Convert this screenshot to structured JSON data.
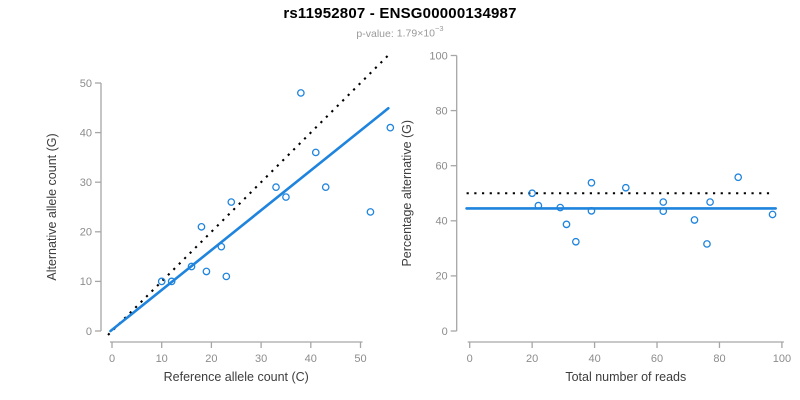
{
  "header": {
    "title": "rs11952807 - ENSG00000134987",
    "pvalue_label": "p-value:",
    "pvalue_mantissa": "1.79",
    "pvalue_times": "×10",
    "pvalue_exponent": "−3"
  },
  "colors": {
    "accent_blue": "#1f84dd",
    "dotted_line": "#000000",
    "axis_line": "#a6a6a6",
    "tick_text": "#8c8c8c",
    "axis_label_text": "#3d3d3d",
    "title_text": "#000000",
    "subtitle_text": "#9a9a9a"
  },
  "chart_data": [
    {
      "type": "scatter",
      "name": "allele-counts-scatter",
      "xlabel": "Reference allele count (C)",
      "ylabel": "Alternative allele count (G)",
      "xticks": [
        0,
        10,
        20,
        30,
        40,
        50
      ],
      "yticks": [
        0,
        10,
        20,
        30,
        40,
        50
      ],
      "xlim": [
        -2.3,
        57.8
      ],
      "ylim": [
        -2.3,
        57.8
      ],
      "grid": false,
      "legend": "none",
      "points": [
        [
          10,
          10
        ],
        [
          12,
          10
        ],
        [
          16,
          13
        ],
        [
          18,
          21
        ],
        [
          19,
          12
        ],
        [
          22,
          17
        ],
        [
          23,
          11
        ],
        [
          24,
          26
        ],
        [
          33,
          29
        ],
        [
          35,
          27
        ],
        [
          38,
          48
        ],
        [
          41,
          36
        ],
        [
          43,
          29
        ],
        [
          52,
          24
        ],
        [
          56,
          41
        ]
      ],
      "lines": [
        {
          "name": "identity-line",
          "style": "dotted",
          "color": "#000000",
          "x1": -0.8,
          "y1": -0.8,
          "x2": 56.2,
          "y2": 56.2
        },
        {
          "name": "regression-line",
          "style": "solid",
          "color": "#1f84dd",
          "x1": -0.3,
          "y1": 0.0,
          "x2": 55.6,
          "y2": 44.9
        }
      ]
    },
    {
      "type": "scatter",
      "name": "percentage-alternative-scatter",
      "xlabel": "Total number of reads",
      "ylabel": "Percentage alternative (G)",
      "xticks": [
        0,
        20,
        40,
        60,
        80,
        100
      ],
      "yticks": [
        0,
        20,
        40,
        60,
        80,
        100
      ],
      "xlim": [
        -4.2,
        104.2
      ],
      "ylim": [
        -4.2,
        104.2
      ],
      "grid": false,
      "legend": "none",
      "points": [
        [
          20,
          50
        ],
        [
          22,
          45.5
        ],
        [
          29,
          44.8
        ],
        [
          31,
          38.7
        ],
        [
          34,
          32.4
        ],
        [
          39,
          53.8
        ],
        [
          39,
          43.6
        ],
        [
          50,
          52
        ],
        [
          62,
          46.8
        ],
        [
          62,
          43.5
        ],
        [
          72,
          40.3
        ],
        [
          76,
          31.6
        ],
        [
          77,
          46.8
        ],
        [
          86,
          55.8
        ],
        [
          97,
          42.3
        ]
      ],
      "lines": [
        {
          "name": "expected-50pct-line",
          "style": "dotted",
          "color": "#000000",
          "x1": -1.0,
          "y1": 50,
          "x2": 96.5,
          "y2": 50
        },
        {
          "name": "mean-pct-line",
          "style": "solid",
          "color": "#1f84dd",
          "x1": -1.0,
          "y1": 44.5,
          "x2": 98.0,
          "y2": 44.5
        }
      ]
    }
  ]
}
